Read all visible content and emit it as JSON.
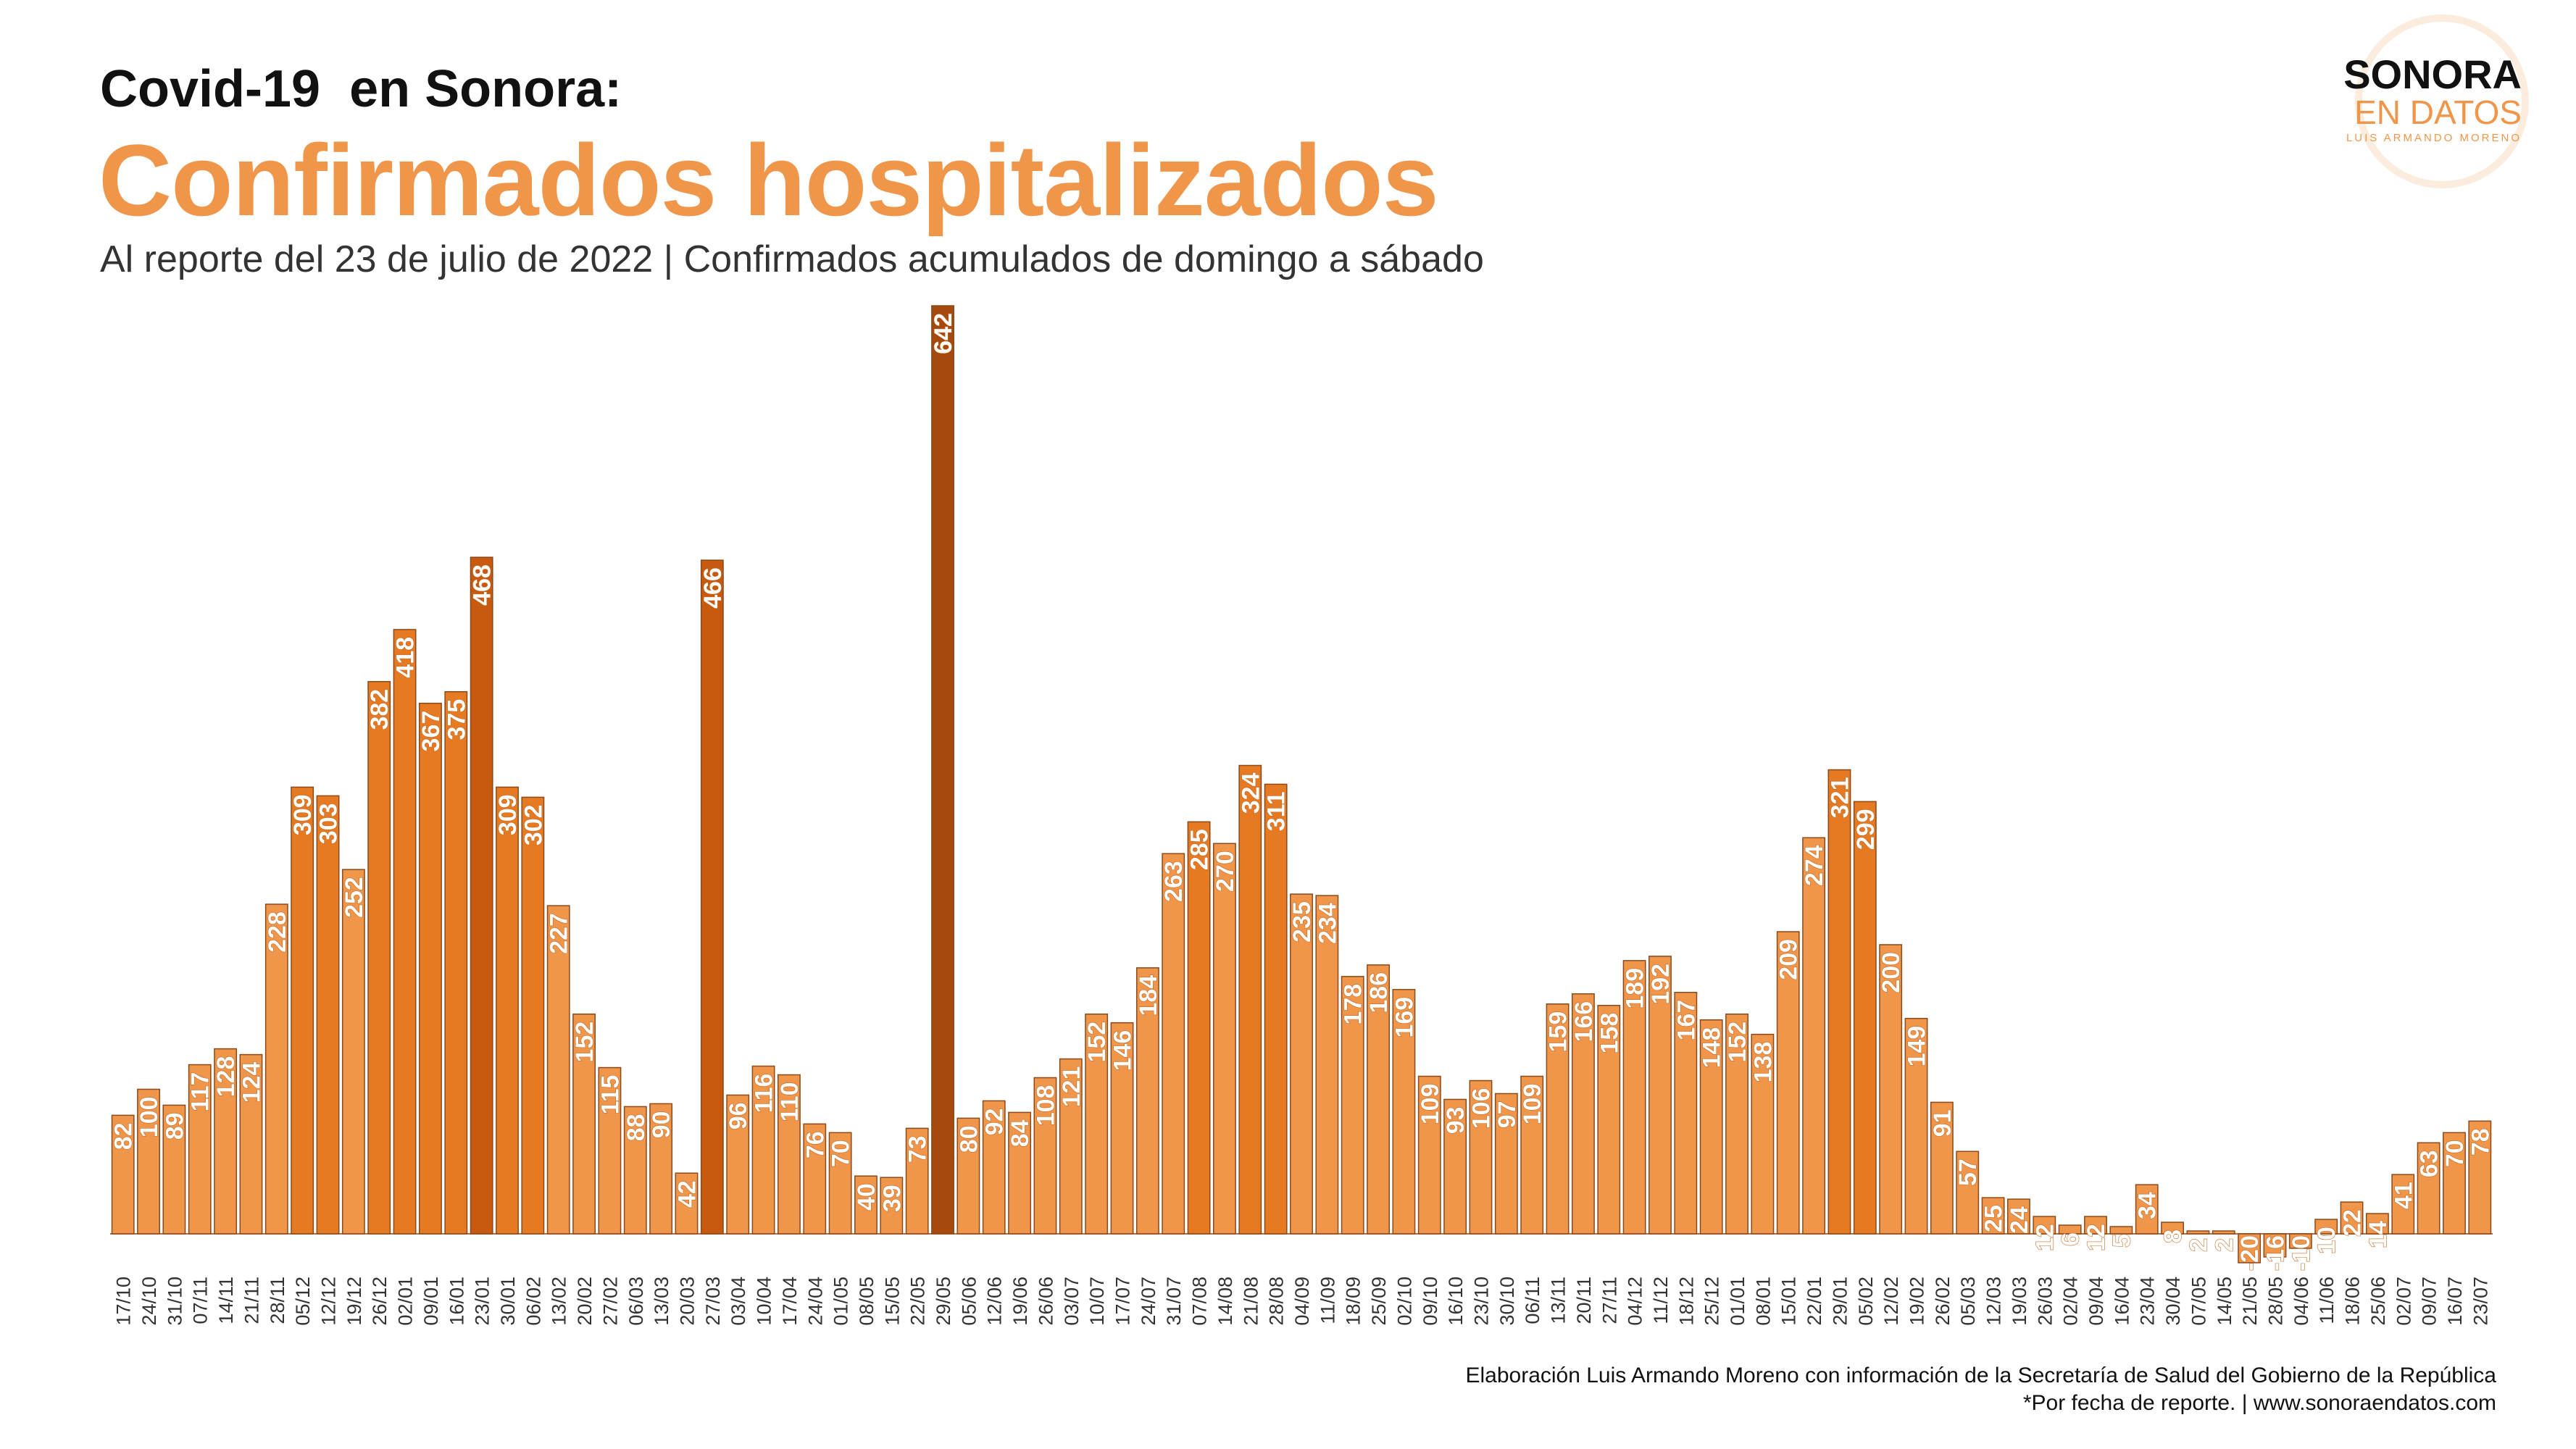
{
  "header": {
    "kicker": "Covid-19  en Sonora:",
    "title": "Confirmados hospitalizados",
    "subtitle": "Al reporte del 23 de julio de 2022 | Confirmados acumulados de domingo a sábado"
  },
  "logo": {
    "line1": "SONORA",
    "line2": "EN DATOS",
    "line3": "LUIS ARMANDO MORENO"
  },
  "footer": {
    "credit": "Elaboración Luis Armando Moreno con información de la Secretaría de Salud del Gobierno de la República",
    "note": "*Por fecha de reporte. | www.sonoraendatos.com"
  },
  "colors": {
    "light": "#f0964a",
    "medium": "#e67a22",
    "dark": "#c85a10",
    "darkest": "#a54a0c",
    "stroke": "#8a4a1c",
    "label": "#ffffff",
    "axis_text": "#333333"
  },
  "chart_data": {
    "type": "bar",
    "title": "Confirmados hospitalizados",
    "xlabel": "",
    "ylabel": "",
    "ylim": [
      -20,
      642
    ],
    "grid": false,
    "legend": "none",
    "categories": [
      "17/10",
      "24/10",
      "31/10",
      "07/11",
      "14/11",
      "21/11",
      "28/11",
      "05/12",
      "12/12",
      "19/12",
      "26/12",
      "02/01",
      "09/01",
      "16/01",
      "23/01",
      "30/01",
      "06/02",
      "13/02",
      "20/02",
      "27/02",
      "06/03",
      "13/03",
      "20/03",
      "27/03",
      "03/04",
      "10/04",
      "17/04",
      "24/04",
      "01/05",
      "08/05",
      "15/05",
      "22/05",
      "29/05",
      "05/06",
      "12/06",
      "19/06",
      "26/06",
      "03/07",
      "10/07",
      "17/07",
      "24/07",
      "31/07",
      "07/08",
      "14/08",
      "21/08",
      "28/08",
      "04/09",
      "11/09",
      "18/09",
      "25/09",
      "02/10",
      "09/10",
      "16/10",
      "23/10",
      "30/10",
      "06/11",
      "13/11",
      "20/11",
      "27/11",
      "04/12",
      "11/12",
      "18/12",
      "25/12",
      "01/01",
      "08/01",
      "15/01",
      "22/01",
      "29/01",
      "05/02",
      "12/02",
      "19/02",
      "26/02",
      "05/03",
      "12/03",
      "19/03",
      "26/03",
      "02/04",
      "09/04",
      "16/04",
      "23/04",
      "30/04",
      "07/05",
      "14/05",
      "21/05",
      "28/05",
      "04/06",
      "11/06",
      "18/06",
      "25/06",
      "02/07",
      "09/07",
      "16/07",
      "23/07"
    ],
    "values": [
      82,
      100,
      89,
      117,
      128,
      124,
      228,
      309,
      303,
      252,
      382,
      418,
      367,
      375,
      468,
      309,
      302,
      227,
      152,
      115,
      88,
      90,
      42,
      466,
      96,
      116,
      110,
      76,
      70,
      40,
      39,
      73,
      642,
      80,
      92,
      84,
      108,
      121,
      152,
      146,
      184,
      263,
      285,
      270,
      324,
      311,
      235,
      234,
      178,
      186,
      169,
      109,
      93,
      106,
      97,
      109,
      159,
      166,
      158,
      189,
      192,
      167,
      148,
      152,
      138,
      209,
      274,
      321,
      299,
      200,
      149,
      91,
      57,
      25,
      24,
      12,
      6,
      12,
      5,
      34,
      8,
      2,
      2,
      -20,
      -16,
      -10,
      10,
      22,
      14,
      41,
      63,
      70,
      78
    ],
    "labels": [
      "82",
      "100",
      "89",
      "117",
      "128",
      "124",
      "228",
      "309",
      "303",
      "252",
      "382",
      "418",
      "367",
      "375",
      "468",
      "309",
      "302",
      "227",
      "152",
      "115",
      "88",
      "90",
      "42",
      "466",
      "96",
      "116",
      "110",
      "76",
      "70",
      "40",
      "39",
      "73",
      "642",
      "80",
      "92",
      "84",
      "108",
      "121",
      "152",
      "146",
      "184",
      "263",
      "285",
      "270",
      "324",
      "311",
      "235",
      "234",
      "178",
      "186",
      "169",
      "109",
      "93",
      "106",
      "97",
      "109",
      "159",
      "166",
      "158",
      "189",
      "192",
      "167",
      "148",
      "152",
      "138",
      "209",
      "274",
      "321",
      "299",
      "200",
      "149",
      "91",
      "57",
      "25",
      "24",
      "12",
      "6",
      "12",
      "5",
      "34",
      "8",
      "2",
      "2",
      "-20",
      "-16",
      "-10",
      "10",
      "22",
      "14",
      "41",
      "63",
      "70",
      "78"
    ]
  }
}
